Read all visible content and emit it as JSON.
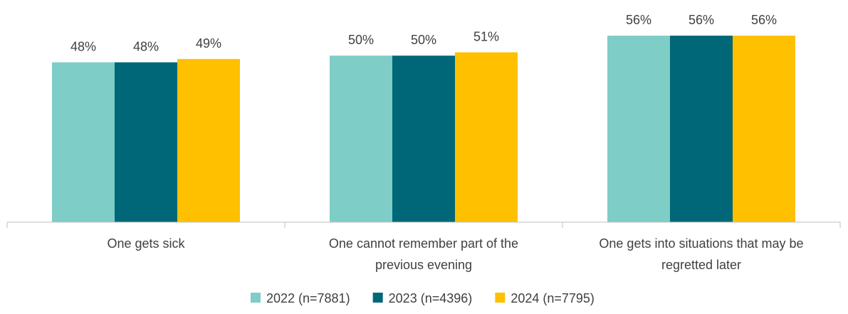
{
  "chart_data": {
    "type": "bar",
    "categories": [
      [
        "One gets sick"
      ],
      [
        "One cannot remember part of the",
        "previous evening"
      ],
      [
        "One gets into situations that may be",
        "regretted later"
      ]
    ],
    "series": [
      {
        "name": "2022 (n=7881)",
        "color": "#7ECDC6",
        "values": [
          48,
          50,
          56
        ]
      },
      {
        "name": "2023 (n=4396)",
        "color": "#006778",
        "values": [
          48,
          50,
          56
        ]
      },
      {
        "name": "2024 (n=7795)",
        "color": "#FFC000",
        "values": [
          49,
          51,
          56
        ]
      }
    ],
    "data_labels": [
      [
        "48%",
        "50%",
        "56%"
      ],
      [
        "48%",
        "50%",
        "56%"
      ],
      [
        "49%",
        "51%",
        "56%"
      ]
    ],
    "ylim": [
      0,
      65
    ],
    "grid": false,
    "legend_position": "bottom",
    "axis_color": "#BFBFBF"
  }
}
